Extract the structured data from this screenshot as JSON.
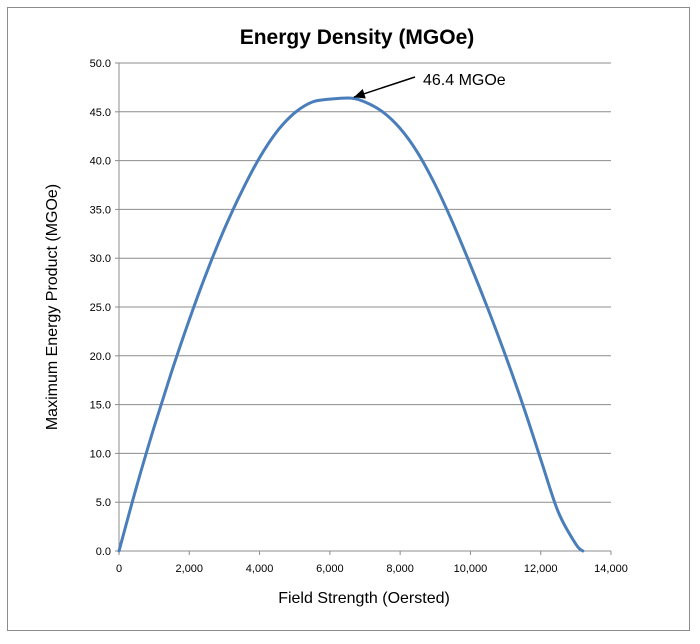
{
  "chart_data": {
    "type": "line",
    "title": "Energy Density (MGOe)",
    "xlabel": "Field Strength (Oersted)",
    "ylabel": "Maximum Energy Product (MGOe)",
    "xlim": [
      0,
      14000
    ],
    "ylim": [
      0,
      50
    ],
    "x_ticks": [
      "0",
      "2,000",
      "4,000",
      "6,000",
      "8,000",
      "10,000",
      "12,000",
      "14,000"
    ],
    "y_ticks": [
      "0.0",
      "5.0",
      "10.0",
      "15.0",
      "20.0",
      "25.0",
      "30.0",
      "35.0",
      "40.0",
      "45.0",
      "50.0"
    ],
    "grid": "horizontal",
    "legend": "none",
    "series": [
      {
        "color": "#4a7ebb",
        "x": [
          0,
          500,
          1000,
          1500,
          2000,
          2500,
          3000,
          3500,
          4000,
          4500,
          5000,
          5500,
          6000,
          6600,
          7000,
          7500,
          8000,
          8500,
          9000,
          9500,
          10000,
          10500,
          11000,
          11500,
          12000,
          12500,
          13000,
          13200
        ],
        "y": [
          0.0,
          6.6,
          12.7,
          18.4,
          23.7,
          28.6,
          33.0,
          36.9,
          40.3,
          43.0,
          44.9,
          46.0,
          46.3,
          46.4,
          46.0,
          45.0,
          43.3,
          40.8,
          37.5,
          33.6,
          29.3,
          24.8,
          20.0,
          14.9,
          9.4,
          4.0,
          0.7,
          0.0
        ]
      }
    ],
    "annotations": [
      {
        "text": "46.4 MGOe",
        "x": 6600,
        "y": 46.4
      }
    ]
  }
}
